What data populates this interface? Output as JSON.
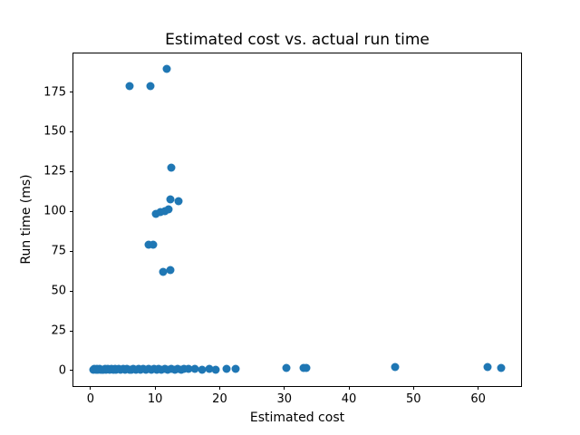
{
  "chart_data": {
    "type": "scatter",
    "title": "Estimated cost vs. actual run time",
    "xlabel": "Estimated cost",
    "ylabel": "Run time (ms)",
    "xlim": [
      -2.65,
      66.65
    ],
    "ylim": [
      -9.7,
      199.2
    ],
    "xticks": [
      0,
      10,
      20,
      30,
      40,
      50,
      60
    ],
    "yticks": [
      0,
      25,
      50,
      75,
      100,
      125,
      150,
      175
    ],
    "grid": false,
    "legend": null,
    "marker_color": "#1f77b4",
    "marker_diameter_px": 9,
    "points": [
      [
        11.8,
        189.3
      ],
      [
        6.1,
        178.5
      ],
      [
        9.3,
        178.5
      ],
      [
        12.5,
        127.5
      ],
      [
        12.4,
        107.3
      ],
      [
        13.6,
        106.6
      ],
      [
        10.1,
        98.7
      ],
      [
        10.8,
        99.6
      ],
      [
        11.5,
        100.4
      ],
      [
        12.1,
        101.1
      ],
      [
        9.0,
        79.2
      ],
      [
        9.7,
        79.2
      ],
      [
        11.2,
        62.1
      ],
      [
        12.3,
        63.1
      ],
      [
        0.4,
        0.5
      ],
      [
        0.6,
        0.9
      ],
      [
        0.8,
        0.4
      ],
      [
        1.0,
        1.1
      ],
      [
        1.2,
        0.6
      ],
      [
        1.4,
        1.3
      ],
      [
        1.6,
        0.5
      ],
      [
        1.8,
        0.8
      ],
      [
        2.0,
        0.3
      ],
      [
        2.2,
        1.0
      ],
      [
        2.4,
        0.6
      ],
      [
        2.7,
        1.2
      ],
      [
        3.0,
        0.5
      ],
      [
        3.2,
        0.9
      ],
      [
        3.5,
        0.4
      ],
      [
        3.8,
        1.1
      ],
      [
        4.0,
        0.7
      ],
      [
        4.3,
        1.3
      ],
      [
        4.6,
        0.5
      ],
      [
        5.0,
        0.9
      ],
      [
        5.3,
        0.6
      ],
      [
        5.6,
        1.2
      ],
      [
        6.0,
        0.4
      ],
      [
        6.3,
        0.8
      ],
      [
        6.6,
        1.1
      ],
      [
        7.0,
        0.5
      ],
      [
        7.4,
        0.9
      ],
      [
        7.8,
        0.6
      ],
      [
        8.2,
        1.2
      ],
      [
        8.6,
        0.5
      ],
      [
        9.0,
        0.9
      ],
      [
        9.4,
        0.6
      ],
      [
        9.8,
        1.0
      ],
      [
        10.2,
        0.5
      ],
      [
        10.6,
        0.9
      ],
      [
        11.0,
        0.7
      ],
      [
        11.5,
        1.1
      ],
      [
        12.0,
        0.6
      ],
      [
        12.5,
        0.9
      ],
      [
        13.0,
        0.5
      ],
      [
        13.5,
        1.0
      ],
      [
        14.0,
        0.7
      ],
      [
        14.5,
        0.9
      ],
      [
        15.1,
        0.9
      ],
      [
        16.2,
        1.0
      ],
      [
        17.3,
        0.8
      ],
      [
        18.4,
        0.9
      ],
      [
        19.4,
        0.7
      ],
      [
        21.1,
        1.0
      ],
      [
        22.4,
        1.1
      ],
      [
        30.3,
        1.5
      ],
      [
        33.0,
        1.6
      ],
      [
        33.4,
        1.7
      ],
      [
        47.2,
        2.3
      ],
      [
        61.5,
        2.3
      ],
      [
        63.5,
        1.9
      ]
    ]
  }
}
